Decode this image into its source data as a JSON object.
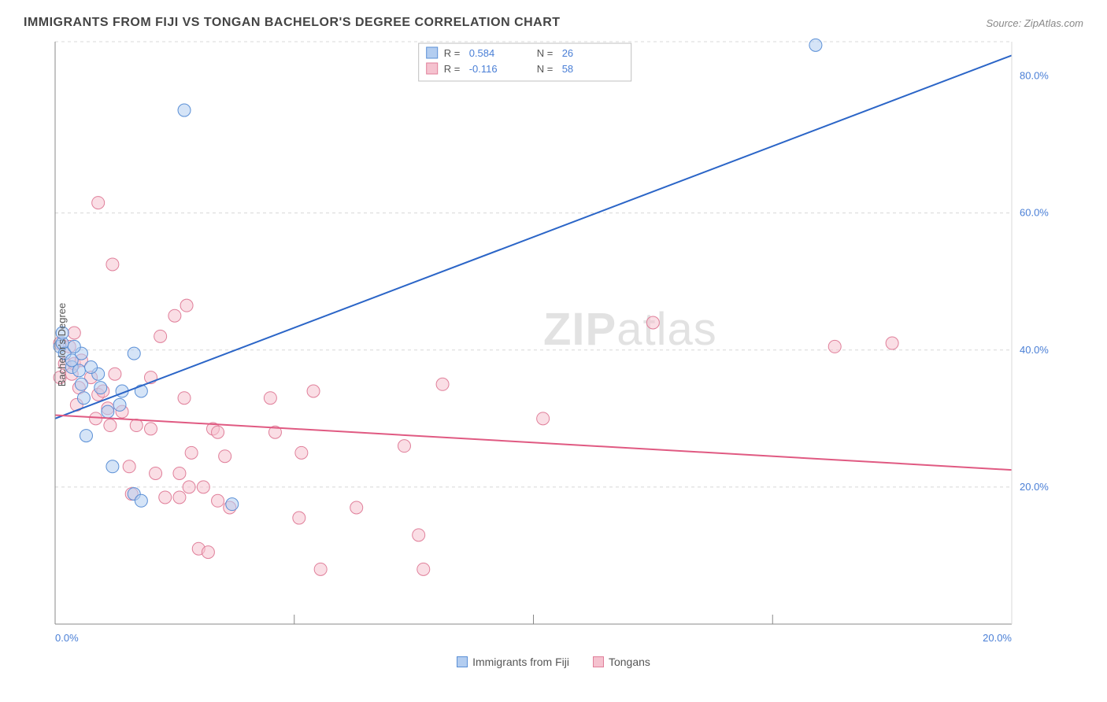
{
  "title": "IMMIGRANTS FROM FIJI VS TONGAN BACHELOR'S DEGREE CORRELATION CHART",
  "source_label": "Source: ZipAtlas.com",
  "ylabel": "Bachelor's Degree",
  "watermark_heavy": "ZIP",
  "watermark_light": "atlas",
  "chart": {
    "xlim": [
      0,
      20
    ],
    "ylim": [
      0,
      85
    ],
    "x_ticks": [
      0,
      20
    ],
    "x_tick_labels": [
      "0.0%",
      "20.0%"
    ],
    "y_ticks": [
      20,
      40,
      60,
      80
    ],
    "y_tick_labels": [
      "20.0%",
      "40.0%",
      "60.0%",
      "80.0%"
    ],
    "y_gridlines": [
      20,
      40,
      60,
      85
    ],
    "grid_color": "#d8d8d8",
    "axis_color": "#888888",
    "tick_label_color": "#4a7fd6",
    "background_color": "#ffffff",
    "marker_radius": 8,
    "marker_opacity": 0.55,
    "line_width": 2
  },
  "series1": {
    "name": "Immigrants from Fiji",
    "color_fill": "#b3cdf0",
    "color_stroke": "#5a8fd6",
    "line_color": "#2b65c7",
    "R": "0.584",
    "N": "26",
    "line_start": {
      "x": 0,
      "y": 30
    },
    "line_end": {
      "x": 20,
      "y": 83
    },
    "points": [
      {
        "x": 0.1,
        "y": 40.5
      },
      {
        "x": 0.15,
        "y": 41
      },
      {
        "x": 0.2,
        "y": 39.5
      },
      {
        "x": 0.35,
        "y": 37.5
      },
      {
        "x": 0.35,
        "y": 38.5
      },
      {
        "x": 0.55,
        "y": 39.5
      },
      {
        "x": 0.5,
        "y": 37
      },
      {
        "x": 0.55,
        "y": 35
      },
      {
        "x": 0.6,
        "y": 33
      },
      {
        "x": 0.95,
        "y": 34.5
      },
      {
        "x": 0.9,
        "y": 36.5
      },
      {
        "x": 1.4,
        "y": 34
      },
      {
        "x": 1.1,
        "y": 31
      },
      {
        "x": 0.65,
        "y": 27.5
      },
      {
        "x": 1.2,
        "y": 23
      },
      {
        "x": 1.65,
        "y": 19
      },
      {
        "x": 1.8,
        "y": 18
      },
      {
        "x": 1.8,
        "y": 34
      },
      {
        "x": 1.65,
        "y": 39.5
      },
      {
        "x": 2.7,
        "y": 75
      },
      {
        "x": 15.9,
        "y": 84.5
      },
      {
        "x": 0.15,
        "y": 42.5
      },
      {
        "x": 0.4,
        "y": 40.5
      },
      {
        "x": 0.75,
        "y": 37.5
      },
      {
        "x": 1.35,
        "y": 32
      },
      {
        "x": 3.7,
        "y": 17.5
      }
    ]
  },
  "series2": {
    "name": "Tongans",
    "color_fill": "#f5c2cf",
    "color_stroke": "#e07f9a",
    "line_color": "#e05a82",
    "R": "-0.116",
    "N": "58",
    "line_start": {
      "x": 0,
      "y": 30.5
    },
    "line_end": {
      "x": 20,
      "y": 22.5
    },
    "points": [
      {
        "x": 0.1,
        "y": 36
      },
      {
        "x": 0.1,
        "y": 41
      },
      {
        "x": 0.2,
        "y": 38
      },
      {
        "x": 0.3,
        "y": 40.5
      },
      {
        "x": 0.35,
        "y": 36.5
      },
      {
        "x": 0.4,
        "y": 42.5
      },
      {
        "x": 0.4,
        "y": 38
      },
      {
        "x": 0.45,
        "y": 32
      },
      {
        "x": 0.5,
        "y": 34.5
      },
      {
        "x": 0.55,
        "y": 38.5
      },
      {
        "x": 0.75,
        "y": 36
      },
      {
        "x": 0.85,
        "y": 30
      },
      {
        "x": 0.9,
        "y": 33.5
      },
      {
        "x": 0.9,
        "y": 61.5
      },
      {
        "x": 1.0,
        "y": 34
      },
      {
        "x": 1.1,
        "y": 31.5
      },
      {
        "x": 1.15,
        "y": 29
      },
      {
        "x": 1.25,
        "y": 36.5
      },
      {
        "x": 1.2,
        "y": 52.5
      },
      {
        "x": 1.4,
        "y": 31
      },
      {
        "x": 1.55,
        "y": 23
      },
      {
        "x": 1.7,
        "y": 29
      },
      {
        "x": 1.6,
        "y": 19
      },
      {
        "x": 2.0,
        "y": 36
      },
      {
        "x": 2.0,
        "y": 28.5
      },
      {
        "x": 2.1,
        "y": 22
      },
      {
        "x": 2.2,
        "y": 42
      },
      {
        "x": 2.3,
        "y": 18.5
      },
      {
        "x": 2.5,
        "y": 45
      },
      {
        "x": 2.6,
        "y": 18.5
      },
      {
        "x": 2.6,
        "y": 22
      },
      {
        "x": 2.7,
        "y": 33
      },
      {
        "x": 2.75,
        "y": 46.5
      },
      {
        "x": 2.8,
        "y": 20
      },
      {
        "x": 2.85,
        "y": 25
      },
      {
        "x": 3.0,
        "y": 11
      },
      {
        "x": 3.1,
        "y": 20
      },
      {
        "x": 3.2,
        "y": 10.5
      },
      {
        "x": 3.3,
        "y": 28.5
      },
      {
        "x": 3.4,
        "y": 18
      },
      {
        "x": 3.4,
        "y": 28
      },
      {
        "x": 3.55,
        "y": 24.5
      },
      {
        "x": 3.65,
        "y": 17
      },
      {
        "x": 4.5,
        "y": 33
      },
      {
        "x": 4.6,
        "y": 28
      },
      {
        "x": 5.1,
        "y": 15.5
      },
      {
        "x": 5.15,
        "y": 25
      },
      {
        "x": 5.4,
        "y": 34
      },
      {
        "x": 5.55,
        "y": 8
      },
      {
        "x": 6.3,
        "y": 17
      },
      {
        "x": 7.3,
        "y": 26
      },
      {
        "x": 7.6,
        "y": 13
      },
      {
        "x": 7.7,
        "y": 8
      },
      {
        "x": 8.1,
        "y": 35
      },
      {
        "x": 10.2,
        "y": 30
      },
      {
        "x": 12.5,
        "y": 44
      },
      {
        "x": 16.3,
        "y": 40.5
      },
      {
        "x": 17.5,
        "y": 41
      }
    ]
  },
  "stats_legend": {
    "label_R": "R =",
    "label_N": "N =",
    "text_color": "#555555",
    "value_color": "#4a7fd6"
  },
  "bottom_legend": {
    "item1": "Immigrants from Fiji",
    "item2": "Tongans"
  }
}
